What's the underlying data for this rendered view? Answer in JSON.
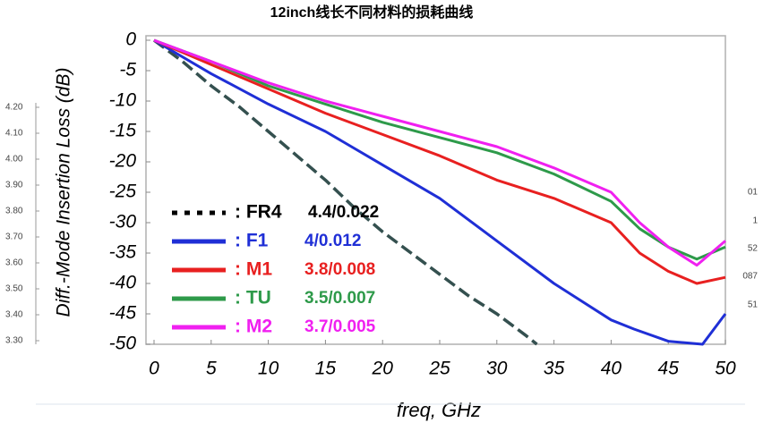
{
  "chart_data": {
    "type": "line",
    "title": "12inch线长不同材料的损耗曲线",
    "x_label": "freq, GHz",
    "y_label": "Diff.-Mode Insertion Loss (dB)",
    "xlim": [
      0,
      50
    ],
    "xticks": [
      0,
      5,
      10,
      15,
      20,
      25,
      30,
      35,
      40,
      45,
      50
    ],
    "ylim": [
      -50,
      0
    ],
    "yticks": [
      0,
      -5,
      -10,
      -15,
      -20,
      -25,
      -30,
      -35,
      -40,
      -45,
      -50
    ],
    "grid": false,
    "series": [
      {
        "name": ": FR4",
        "spec": "4.4/0.022",
        "color": "#34504f",
        "label_color": "#000000",
        "dashed": true,
        "x": [
          0,
          2.5,
          5,
          7.5,
          10,
          12.5,
          15,
          17.5,
          20,
          22.5,
          25,
          27.5,
          30,
          32.5,
          33.5
        ],
        "values": [
          0,
          -3.5,
          -7.5,
          -11,
          -15,
          -19,
          -23,
          -27.5,
          -31.5,
          -35,
          -38.5,
          -42,
          -45,
          -48.5,
          -50
        ]
      },
      {
        "name": ": F1",
        "spec": "4/0.012",
        "color": "#1f2fd6",
        "label_color": "#1f2fd6",
        "dashed": false,
        "x": [
          0,
          5,
          10,
          15,
          20,
          25,
          30,
          35,
          40,
          42,
          45,
          48,
          50
        ],
        "values": [
          0,
          -5.5,
          -10.5,
          -15,
          -20.5,
          -26,
          -33,
          -40,
          -46,
          -47.5,
          -49.5,
          -50,
          -45
        ]
      },
      {
        "name": ": M1",
        "spec": "3.8/0.008",
        "color": "#e82020",
        "label_color": "#e82020",
        "dashed": false,
        "x": [
          0,
          5,
          10,
          15,
          20,
          25,
          30,
          35,
          40,
          42.5,
          45,
          47.5,
          50
        ],
        "values": [
          0,
          -4,
          -8,
          -12,
          -15.5,
          -19,
          -23,
          -26,
          -30,
          -35,
          -38,
          -40,
          -39
        ]
      },
      {
        "name": ": TU",
        "spec": "3.5/0.007",
        "color": "#2e9a4a",
        "label_color": "#2e9a4a",
        "dashed": false,
        "x": [
          0,
          5,
          10,
          15,
          20,
          25,
          30,
          35,
          40,
          42.5,
          45,
          47.5,
          50
        ],
        "values": [
          0,
          -3.5,
          -7.5,
          -10.5,
          -13.5,
          -16,
          -18.5,
          -22,
          -26.5,
          -31,
          -34,
          -36,
          -34
        ]
      },
      {
        "name": ": M2",
        "spec": "3.7/0.005",
        "color": "#f020f0",
        "label_color": "#f020f0",
        "dashed": false,
        "x": [
          0,
          5,
          10,
          15,
          20,
          25,
          30,
          35,
          40,
          42.5,
          45,
          47.5,
          50
        ],
        "values": [
          0,
          -3.5,
          -7,
          -10,
          -12.5,
          -15,
          -17.5,
          -21,
          -25,
          -30,
          -34,
          -37,
          -33
        ]
      }
    ],
    "left_fragment_labels": [
      "4.20",
      "4.10",
      "4.00",
      "3.90",
      "3.80",
      "3.70",
      "3.60",
      "3.50",
      "3.40",
      "3.30"
    ],
    "right_fragment_labels": [
      "01",
      "1",
      "52",
      "087",
      "51"
    ]
  }
}
